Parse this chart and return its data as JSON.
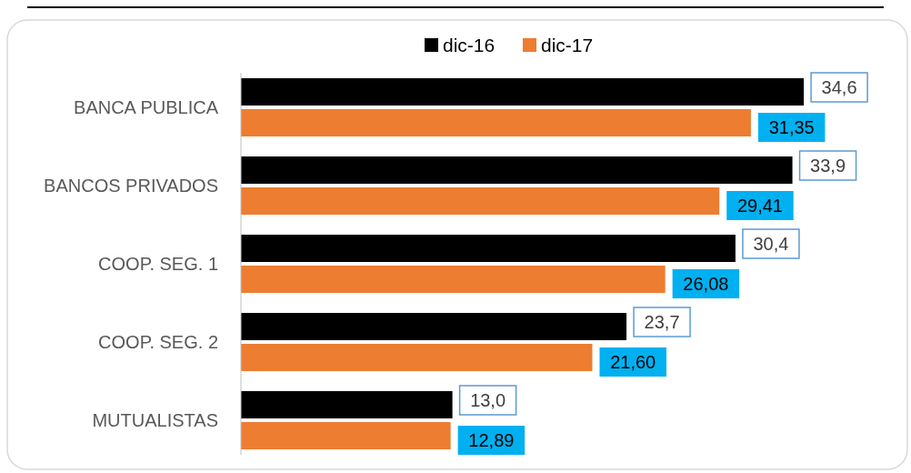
{
  "chart_data": {
    "type": "bar",
    "orientation": "horizontal",
    "categories": [
      "BANCA PUBLICA",
      "BANCOS PRIVADOS",
      "COOP. SEG. 1",
      "COOP. SEG. 2",
      "MUTUALISTAS"
    ],
    "series": [
      {
        "name": "dic-16",
        "color": "#000000",
        "values": [
          34.6,
          33.9,
          30.4,
          23.7,
          13.0
        ],
        "value_labels": [
          "34,6",
          "33,9",
          "30,4",
          "23,7",
          "13,0"
        ]
      },
      {
        "name": "dic-17",
        "color": "#ed7d31",
        "values": [
          31.35,
          29.41,
          26.08,
          21.6,
          12.89
        ],
        "value_labels": [
          "31,35",
          "29,41",
          "26,08",
          "21,60",
          "12,89"
        ]
      }
    ],
    "legend": "top"
  }
}
